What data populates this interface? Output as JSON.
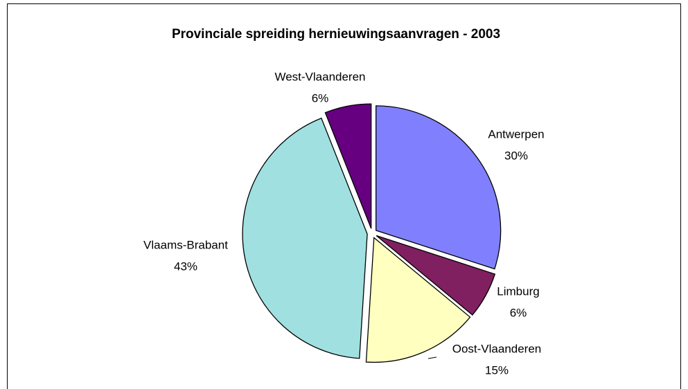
{
  "chart_data": {
    "type": "pie",
    "title": "Provinciale spreiding hernieuwingsaanvragen - 2003",
    "categories": [
      "Antwerpen",
      "Limburg",
      "Oost-Vlaanderen",
      "Vlaams-Brabant",
      "West-Vlaanderen"
    ],
    "values": [
      30,
      6,
      15,
      43,
      6
    ],
    "value_labels": [
      "30%",
      "6%",
      "15%",
      "43%",
      "6%"
    ],
    "colors": [
      "#8080ff",
      "#802060",
      "#ffffc0",
      "#a0e0e0",
      "#660080"
    ]
  }
}
